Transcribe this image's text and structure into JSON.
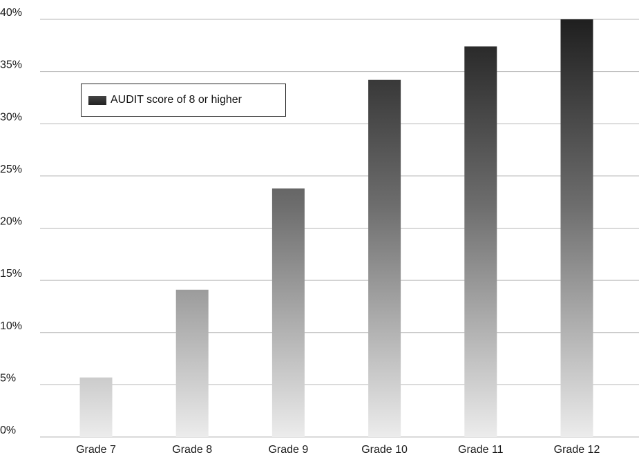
{
  "chart_data": {
    "type": "bar",
    "categories": [
      "Grade 7",
      "Grade 8",
      "Grade 9",
      "Grade 10",
      "Grade 11",
      "Grade 12"
    ],
    "series": [
      {
        "name": "AUDIT score of 8 or higher",
        "values": [
          5.7,
          14.1,
          23.8,
          34.2,
          37.4,
          40.0
        ]
      }
    ],
    "ylim": [
      0,
      40
    ],
    "yticks": [
      "0%",
      "5%",
      "10%",
      "15%",
      "20%",
      "25%",
      "30%",
      "35%",
      "40%"
    ],
    "grid": true,
    "legend_position": "top-left"
  }
}
